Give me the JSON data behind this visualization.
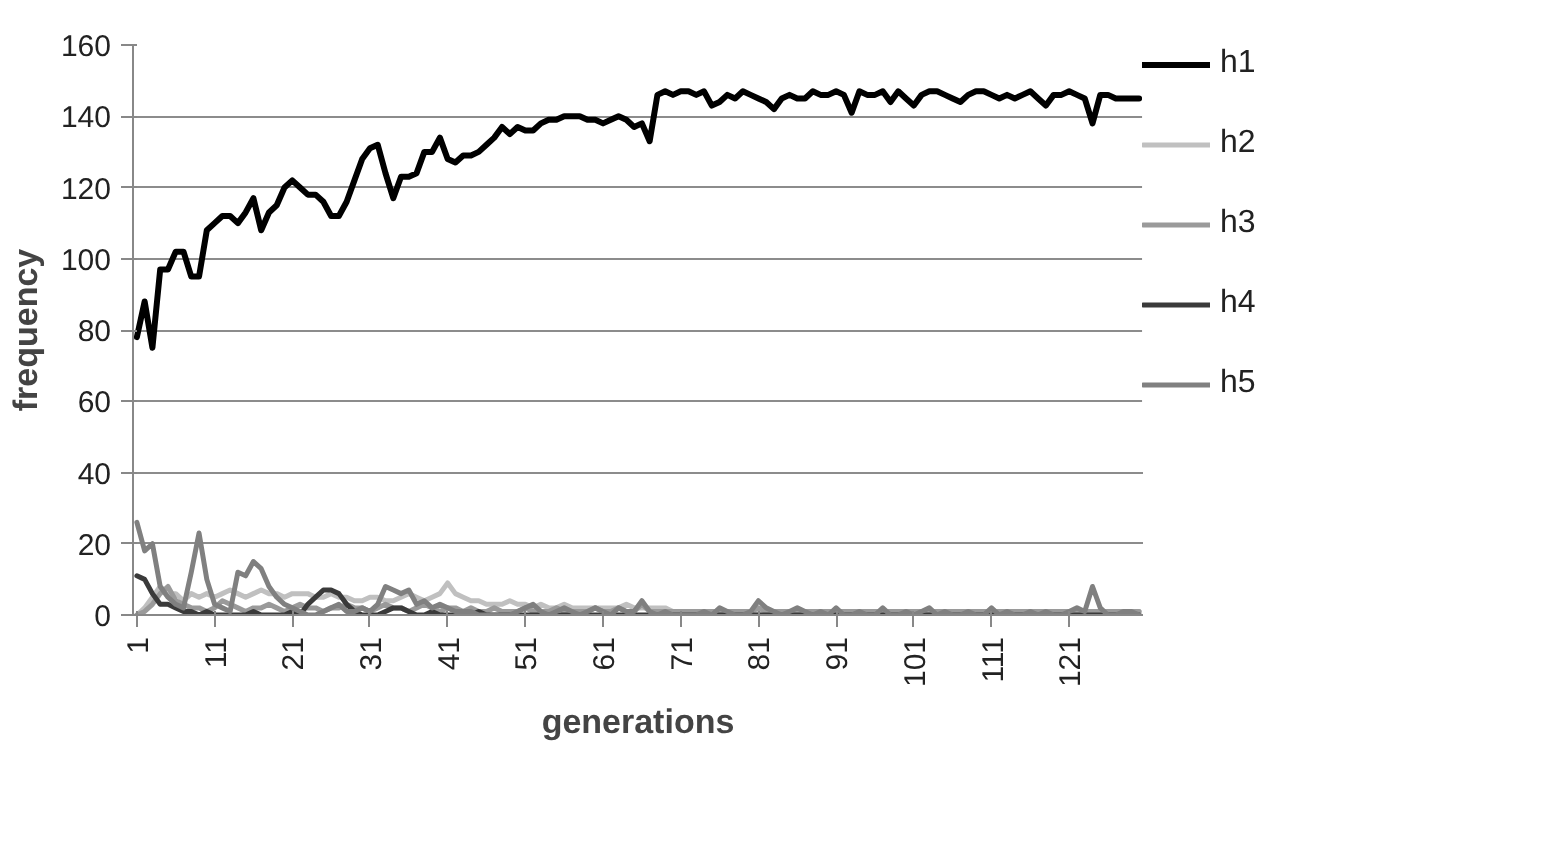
{
  "chart_data": {
    "type": "line",
    "xlabel": "generations",
    "ylabel": "frequency",
    "categories": [
      "1",
      null,
      null,
      null,
      null,
      null,
      null,
      null,
      null,
      null,
      "11",
      null,
      null,
      null,
      null,
      null,
      null,
      null,
      null,
      null,
      "21",
      null,
      null,
      null,
      null,
      null,
      null,
      null,
      null,
      null,
      "31",
      null,
      null,
      null,
      null,
      null,
      null,
      null,
      null,
      null,
      "41",
      null,
      null,
      null,
      null,
      null,
      null,
      null,
      null,
      null,
      "51",
      null,
      null,
      null,
      null,
      null,
      null,
      null,
      null,
      null,
      "61",
      null,
      null,
      null,
      null,
      null,
      null,
      null,
      null,
      null,
      "71",
      null,
      null,
      null,
      null,
      null,
      null,
      null,
      null,
      null,
      "81",
      null,
      null,
      null,
      null,
      null,
      null,
      null,
      null,
      null,
      "91",
      null,
      null,
      null,
      null,
      null,
      null,
      null,
      null,
      null,
      "101",
      null,
      null,
      null,
      null,
      null,
      null,
      null,
      null,
      null,
      "111",
      null,
      null,
      null,
      null,
      null,
      null,
      null,
      null,
      null,
      "121",
      null,
      null,
      null,
      null,
      null,
      null,
      null,
      null,
      null
    ],
    "ylim": [
      0,
      160
    ],
    "yticks": [
      0,
      20,
      40,
      60,
      80,
      100,
      120,
      140,
      160
    ],
    "grid": "y",
    "legend": "right",
    "series": [
      {
        "name": "h1",
        "color": "#000000",
        "values": [
          78,
          88,
          75,
          97,
          97,
          102,
          102,
          95,
          95,
          108,
          110,
          112,
          112,
          110,
          113,
          117,
          108,
          113,
          115,
          120,
          122,
          120,
          118,
          118,
          116,
          112,
          112,
          116,
          122,
          128,
          131,
          132,
          124,
          117,
          123,
          123,
          124,
          130,
          130,
          134,
          128,
          127,
          129,
          129,
          130,
          132,
          134,
          137,
          135,
          137,
          136,
          136,
          138,
          139,
          139,
          140,
          140,
          140,
          139,
          139,
          138,
          139,
          140,
          139,
          137,
          138,
          133,
          146,
          147,
          146,
          147,
          147,
          146,
          147,
          143,
          144,
          146,
          145,
          147,
          146,
          145,
          144,
          142,
          145,
          146,
          145,
          145,
          147,
          146,
          146,
          147,
          146,
          141,
          147,
          146,
          146,
          147,
          144,
          147,
          145,
          143,
          146,
          147,
          147,
          146,
          145,
          144,
          146,
          147,
          147,
          146,
          145,
          146,
          145,
          146,
          147,
          145,
          143,
          146,
          146,
          147,
          146,
          145,
          138,
          146,
          146,
          145,
          145,
          145,
          145
        ]
      },
      {
        "name": "h2",
        "color": "#c0c0c0",
        "values": [
          0,
          2,
          5,
          8,
          6,
          6,
          4,
          6,
          5,
          6,
          5,
          6,
          7,
          6,
          5,
          6,
          7,
          6,
          6,
          5,
          6,
          6,
          6,
          5,
          5,
          6,
          5,
          5,
          4,
          4,
          5,
          5,
          4,
          4,
          5,
          6,
          5,
          4,
          5,
          6,
          9,
          6,
          5,
          4,
          4,
          3,
          3,
          3,
          4,
          3,
          3,
          2,
          3,
          2,
          2,
          3,
          2,
          2,
          2,
          2,
          2,
          2,
          2,
          3,
          2,
          2,
          2,
          2,
          2,
          1,
          1,
          1,
          1,
          1,
          1,
          1,
          1,
          1,
          1,
          1,
          1,
          1,
          1,
          1,
          1,
          1,
          1,
          1,
          1,
          1,
          1,
          1,
          1,
          1,
          1,
          1,
          1,
          1,
          1,
          1,
          1,
          1,
          1,
          1,
          1,
          1,
          1,
          1,
          1,
          1,
          1,
          1,
          1,
          1,
          1,
          1,
          1,
          1,
          1,
          1,
          1,
          1,
          1,
          1,
          1,
          1,
          1,
          1,
          1,
          1
        ]
      },
      {
        "name": "h3",
        "color": "#9a9a9a",
        "values": [
          0,
          1,
          3,
          6,
          8,
          4,
          3,
          2,
          2,
          1,
          2,
          4,
          3,
          2,
          1,
          2,
          2,
          3,
          2,
          1,
          2,
          3,
          2,
          2,
          1,
          2,
          2,
          3,
          2,
          2,
          1,
          2,
          3,
          2,
          2,
          1,
          2,
          3,
          2,
          1,
          2,
          2,
          1,
          2,
          1,
          1,
          2,
          1,
          1,
          1,
          2,
          1,
          1,
          1,
          2,
          1,
          1,
          1,
          1,
          2,
          1,
          1,
          2,
          1,
          1,
          3,
          1,
          1,
          1,
          1,
          1,
          1,
          1,
          1,
          1,
          1,
          1,
          1,
          1,
          1,
          2,
          1,
          1,
          1,
          1,
          1,
          1,
          1,
          1,
          1,
          1,
          1,
          1,
          1,
          1,
          1,
          1,
          1,
          1,
          1,
          1,
          1,
          1,
          1,
          1,
          1,
          1,
          1,
          1,
          1,
          1,
          1,
          1,
          1,
          1,
          1,
          1,
          1,
          1,
          1,
          1,
          1,
          1,
          1,
          1,
          1,
          1,
          1,
          1,
          1
        ]
      },
      {
        "name": "h4",
        "color": "#3a3a3a",
        "values": [
          11,
          10,
          6,
          3,
          3,
          2,
          1,
          1,
          0,
          1,
          0,
          0,
          0,
          0,
          0,
          1,
          0,
          0,
          0,
          0,
          1,
          0,
          3,
          5,
          7,
          7,
          6,
          3,
          1,
          0,
          0,
          0,
          1,
          2,
          2,
          1,
          0,
          0,
          1,
          0,
          0,
          0,
          0,
          0,
          1,
          0,
          0,
          0,
          0,
          0,
          0,
          0,
          0,
          0,
          0,
          0,
          0,
          0,
          0,
          0,
          0,
          0,
          0,
          0,
          0,
          0,
          0,
          0,
          0,
          0,
          0,
          0,
          0,
          0,
          0,
          0,
          0,
          0,
          0,
          0,
          0,
          0,
          0,
          0,
          0,
          0,
          0,
          0,
          0,
          0,
          0,
          0,
          0,
          0,
          0,
          0,
          0,
          0,
          0,
          0,
          0,
          0,
          0,
          0,
          0,
          0,
          0,
          0,
          0,
          0,
          0,
          0,
          0,
          0,
          0,
          0,
          0,
          0,
          0,
          0,
          0,
          0,
          0,
          0,
          0,
          0,
          0,
          0,
          0,
          0
        ]
      },
      {
        "name": "h5",
        "color": "#808080",
        "values": [
          26,
          18,
          20,
          8,
          5,
          3,
          2,
          12,
          23,
          10,
          3,
          2,
          1,
          12,
          11,
          15,
          13,
          8,
          5,
          3,
          2,
          1,
          0,
          0,
          1,
          2,
          3,
          1,
          1,
          2,
          1,
          3,
          8,
          7,
          6,
          7,
          3,
          4,
          2,
          3,
          2,
          1,
          1,
          1,
          0,
          0,
          0,
          0,
          0,
          1,
          2,
          3,
          1,
          0,
          1,
          2,
          1,
          0,
          1,
          2,
          1,
          0,
          2,
          1,
          1,
          4,
          1,
          0,
          1,
          0,
          0,
          0,
          0,
          1,
          0,
          2,
          1,
          0,
          0,
          1,
          4,
          2,
          1,
          0,
          1,
          2,
          1,
          0,
          1,
          0,
          2,
          0,
          0,
          1,
          0,
          0,
          2,
          0,
          0,
          1,
          0,
          1,
          2,
          0,
          1,
          0,
          0,
          1,
          0,
          0,
          2,
          0,
          1,
          0,
          0,
          1,
          0,
          1,
          0,
          0,
          1,
          2,
          1,
          8,
          2,
          0,
          0,
          1,
          1,
          0
        ]
      }
    ]
  }
}
